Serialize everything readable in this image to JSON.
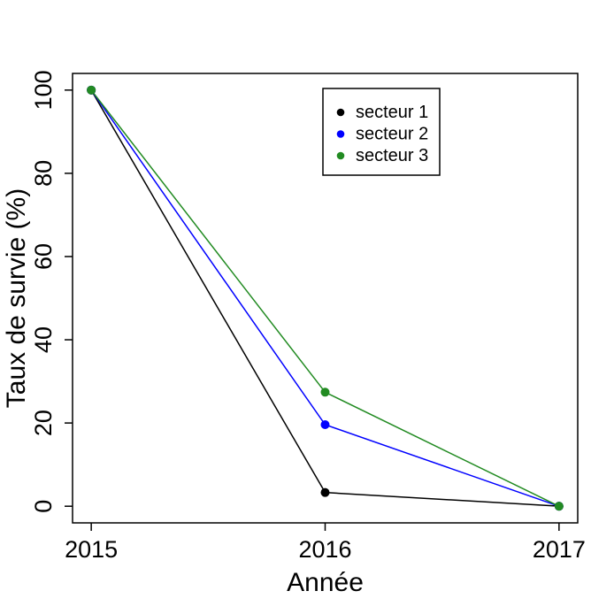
{
  "figure": {
    "background": "#ffffff",
    "foreground": "#000000"
  },
  "chart_data": {
    "type": "line",
    "x": [
      2015,
      2016,
      2017
    ],
    "series": [
      {
        "name": "secteur 1",
        "color": "#000000",
        "values": [
          100,
          3.3,
          0
        ]
      },
      {
        "name": "secteur 2",
        "color": "#0000ff",
        "values": [
          100,
          19.6,
          0
        ]
      },
      {
        "name": "secteur 3",
        "color": "#228b22",
        "values": [
          100,
          27.4,
          0
        ]
      }
    ],
    "title": "",
    "xlabel": "Année",
    "ylabel": "Taux de survie (%)",
    "xticks": [
      2015,
      2016,
      2017
    ],
    "yticks": [
      0,
      20,
      40,
      60,
      80,
      100
    ],
    "xlim": [
      2014.92,
      2017.08
    ],
    "ylim": [
      -4,
      104
    ],
    "grid": false,
    "marker": "filled-circle",
    "legend": {
      "position": "top-right",
      "entries": [
        "secteur 1",
        "secteur 2",
        "secteur 3"
      ]
    }
  }
}
